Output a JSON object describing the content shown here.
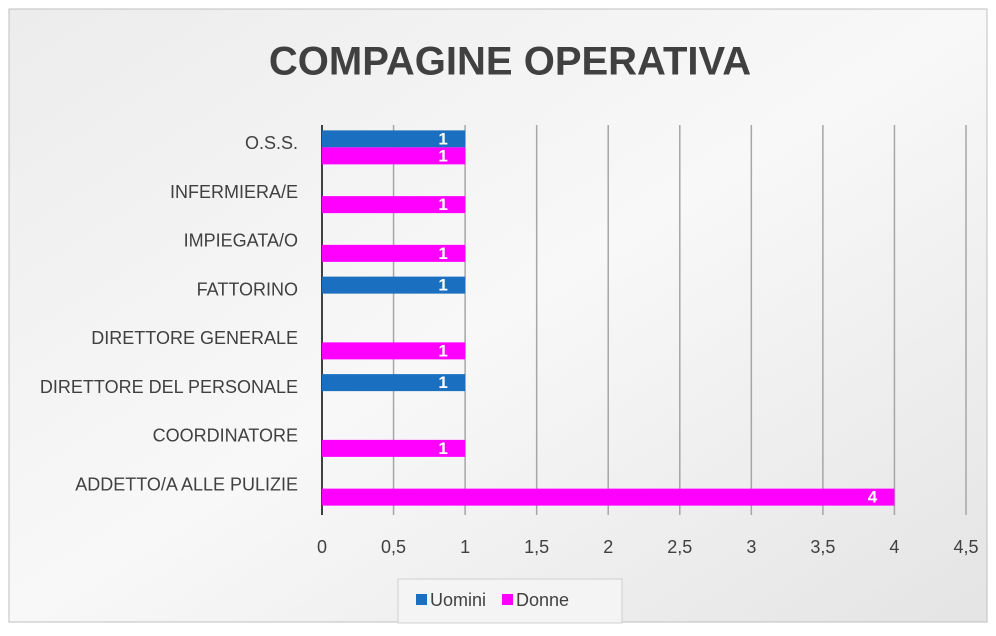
{
  "chart_data": {
    "type": "hbar",
    "title": "COMPAGINE OPERATIVA",
    "categories": [
      "O.S.S.",
      "INFERMIERA/E",
      "IMPIEGATA/O",
      "FATTORINO",
      "DIRETTORE GENERALE",
      "DIRETTORE DEL PERSONALE",
      "COORDINATORE",
      "ADDETTO/A ALLE PULIZIE"
    ],
    "series": [
      {
        "name": "Uomini",
        "color": "#1a6fc0",
        "values": [
          1,
          null,
          null,
          1,
          null,
          1,
          null,
          null
        ]
      },
      {
        "name": "Donne",
        "color": "#ff00ff",
        "values": [
          1,
          1,
          1,
          null,
          1,
          null,
          1,
          4
        ]
      }
    ],
    "xlim": [
      0,
      4.5
    ],
    "xticks": [
      0,
      {
        "value": 0.5,
        "label": "0,5"
      },
      1,
      {
        "value": 1.5,
        "label": "1,5"
      },
      2,
      {
        "value": 2.5,
        "label": "2,5"
      },
      3,
      {
        "value": 3.5,
        "label": "3,5"
      },
      4,
      {
        "value": 4.5,
        "label": "4,5"
      }
    ],
    "grid": true,
    "legend": "bottom"
  }
}
